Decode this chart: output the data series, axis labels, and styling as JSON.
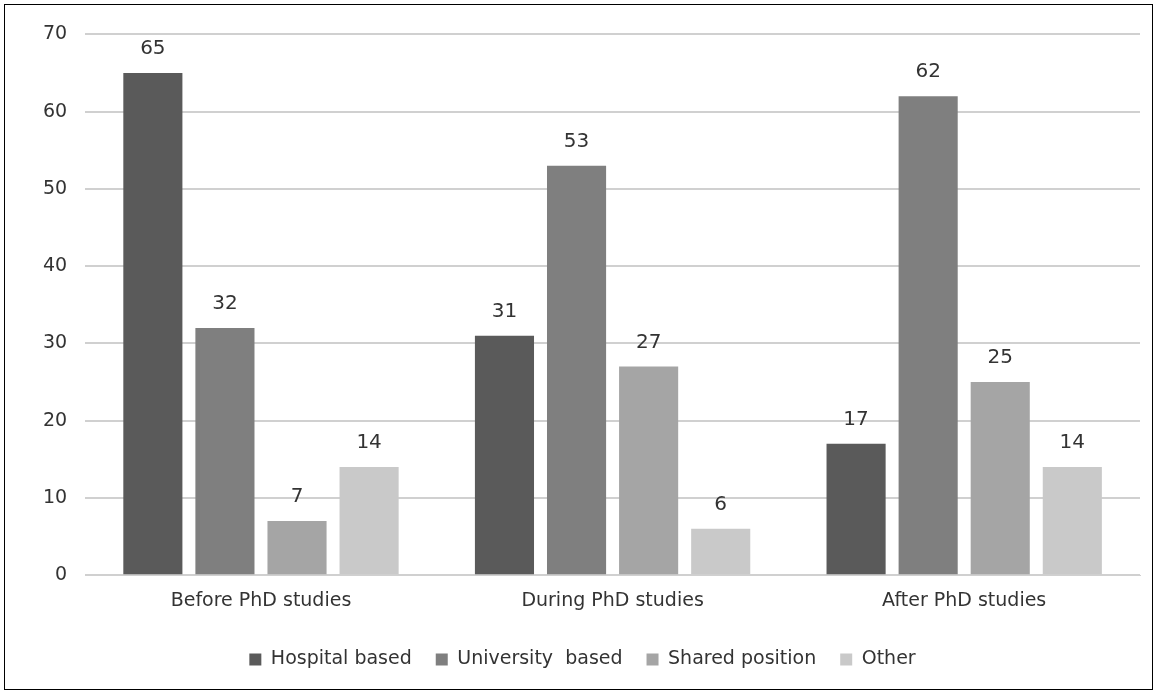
{
  "chart_data": {
    "type": "bar",
    "categories": [
      "Before PhD studies",
      "During PhD studies",
      "After PhD studies"
    ],
    "series": [
      {
        "name": "Hospital based",
        "color": "#5a5a5a",
        "values": [
          65,
          31,
          17
        ]
      },
      {
        "name": "University  based",
        "color": "#7f7f7f",
        "values": [
          32,
          53,
          62
        ]
      },
      {
        "name": "Shared position",
        "color": "#a5a5a5",
        "values": [
          7,
          27,
          25
        ]
      },
      {
        "name": "Other",
        "color": "#c9c9c9",
        "values": [
          14,
          6,
          14
        ]
      }
    ],
    "ylim": [
      0,
      70
    ],
    "yticks": [
      0,
      10,
      20,
      30,
      40,
      50,
      60,
      70
    ],
    "grid": "y",
    "legend": "bottom",
    "data_labels": true
  }
}
